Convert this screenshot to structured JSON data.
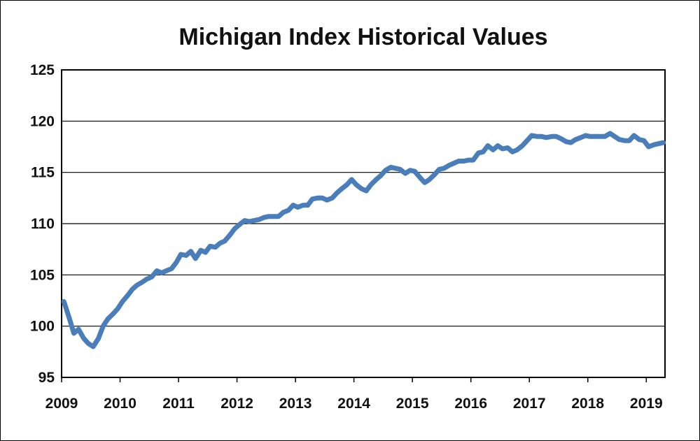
{
  "chart_data": {
    "type": "line",
    "title": "Michigan Index Historical Values",
    "xlabel": "",
    "ylabel": "",
    "xlim": [
      2009,
      2019.32
    ],
    "ylim": [
      95,
      125
    ],
    "x_ticks": [
      "2009",
      "2010",
      "2011",
      "2012",
      "2013",
      "2014",
      "2015",
      "2016",
      "2017",
      "2018",
      "2019"
    ],
    "y_ticks": [
      "95",
      "100",
      "105",
      "110",
      "115",
      "120",
      "125"
    ],
    "grid": "horizontal",
    "legend": "none",
    "line_color": "#4a7ebb",
    "series": [
      {
        "x": [
          2009.04,
          2009.13,
          2009.21,
          2009.29,
          2009.38,
          2009.46,
          2009.54,
          2009.63,
          2009.71,
          2009.79,
          2009.88,
          2009.96,
          2010.04,
          2010.13,
          2010.21,
          2010.29,
          2010.38,
          2010.46,
          2010.54,
          2010.63,
          2010.71,
          2010.79,
          2010.88,
          2010.96,
          2011.04,
          2011.13,
          2011.21,
          2011.29,
          2011.38,
          2011.46,
          2011.54,
          2011.63,
          2011.71,
          2011.79,
          2011.88,
          2011.96,
          2012.04,
          2012.13,
          2012.21,
          2012.29,
          2012.38,
          2012.46,
          2012.54,
          2012.63,
          2012.71,
          2012.79,
          2012.88,
          2012.96,
          2013.04,
          2013.13,
          2013.21,
          2013.29,
          2013.38,
          2013.46,
          2013.54,
          2013.63,
          2013.71,
          2013.79,
          2013.88,
          2013.96,
          2014.04,
          2014.13,
          2014.21,
          2014.29,
          2014.38,
          2014.46,
          2014.54,
          2014.63,
          2014.71,
          2014.79,
          2014.88,
          2014.96,
          2015.04,
          2015.13,
          2015.21,
          2015.29,
          2015.38,
          2015.46,
          2015.54,
          2015.63,
          2015.71,
          2015.79,
          2015.88,
          2015.96,
          2016.04,
          2016.13,
          2016.21,
          2016.29,
          2016.38,
          2016.46,
          2016.54,
          2016.63,
          2016.71,
          2016.79,
          2016.88,
          2016.96,
          2017.04,
          2017.13,
          2017.21,
          2017.29,
          2017.38,
          2017.46,
          2017.54,
          2017.63,
          2017.71,
          2017.79,
          2017.88,
          2017.96,
          2018.04,
          2018.13,
          2018.21,
          2018.29,
          2018.38,
          2018.46,
          2018.54,
          2018.63,
          2018.71,
          2018.79,
          2018.88,
          2018.96,
          2019.04,
          2019.13,
          2019.21,
          2019.29
        ],
        "values": [
          102.4,
          100.8,
          99.3,
          99.7,
          98.8,
          98.3,
          98.0,
          98.8,
          100.0,
          100.7,
          101.2,
          101.7,
          102.4,
          103.0,
          103.6,
          104.0,
          104.3,
          104.6,
          104.8,
          105.4,
          105.2,
          105.4,
          105.6,
          106.2,
          107.0,
          106.9,
          107.3,
          106.6,
          107.4,
          107.2,
          107.8,
          107.7,
          108.1,
          108.3,
          108.9,
          109.5,
          109.9,
          110.3,
          110.2,
          110.3,
          110.4,
          110.6,
          110.7,
          110.7,
          110.7,
          111.1,
          111.3,
          111.8,
          111.6,
          111.8,
          111.8,
          112.4,
          112.5,
          112.5,
          112.3,
          112.5,
          113.0,
          113.4,
          113.8,
          114.3,
          113.8,
          113.4,
          113.2,
          113.8,
          114.3,
          114.7,
          115.2,
          115.5,
          115.4,
          115.3,
          114.9,
          115.2,
          115.1,
          114.5,
          114.0,
          114.3,
          114.8,
          115.3,
          115.4,
          115.7,
          115.9,
          116.1,
          116.1,
          116.2,
          116.2,
          116.9,
          117.0,
          117.6,
          117.2,
          117.6,
          117.3,
          117.4,
          117.0,
          117.2,
          117.6,
          118.1,
          118.6,
          118.5,
          118.5,
          118.4,
          118.5,
          118.5,
          118.3,
          118.0,
          117.9,
          118.2,
          118.4,
          118.6,
          118.5,
          118.5,
          118.5,
          118.5,
          118.8,
          118.5,
          118.2,
          118.1,
          118.1,
          118.6,
          118.2,
          118.1,
          117.5,
          117.7,
          117.8,
          117.9
        ]
      }
    ]
  }
}
